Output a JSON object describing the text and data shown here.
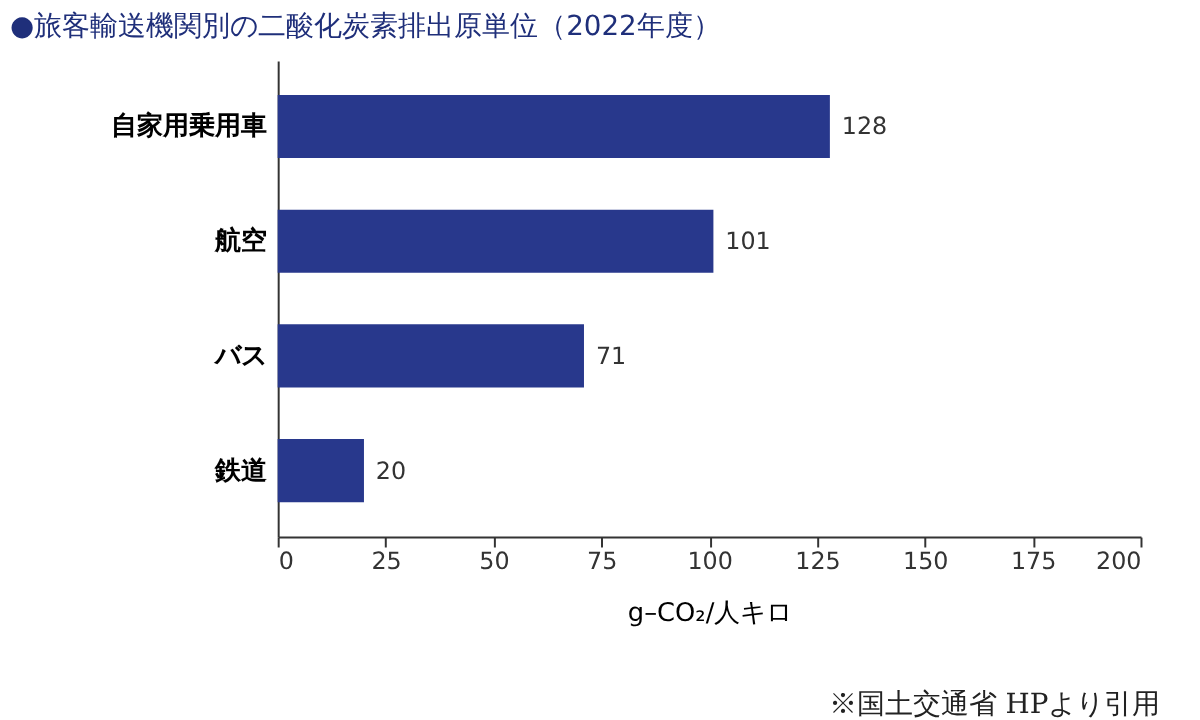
{
  "chart_data": {
    "type": "bar",
    "orientation": "horizontal",
    "title": "●旅客輸送機関別の二酸化炭素排出原単位（2022年度）",
    "categories": [
      "自家用乗用車",
      "航空",
      "バス",
      "鉄道"
    ],
    "values": [
      128,
      101,
      71,
      20
    ],
    "color": "#28388c",
    "data_labels": true,
    "xlim": [
      0,
      200
    ],
    "xticks": [
      0,
      25,
      50,
      75,
      100,
      125,
      150,
      175,
      200
    ],
    "xlabel": "g–CO₂/人キロ",
    "grid": false,
    "annotations": [
      "※国土交通省 HPより引用"
    ]
  }
}
